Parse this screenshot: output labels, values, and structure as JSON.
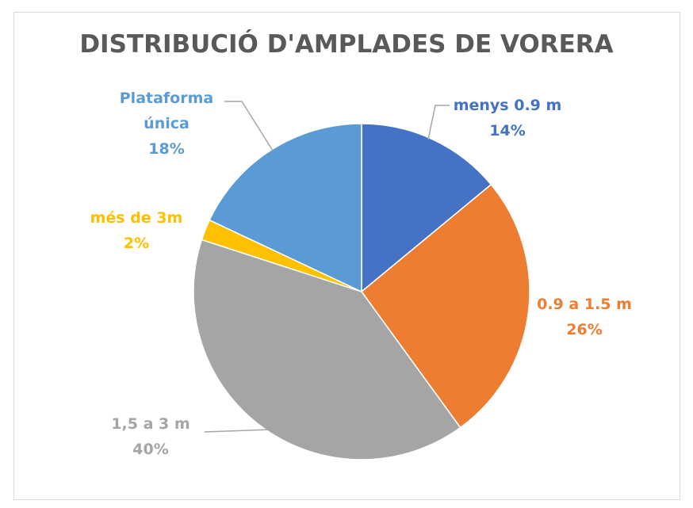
{
  "chart_data": {
    "type": "pie",
    "title": "DISTRIBUCIÓ D'AMPLADES DE VORERA",
    "categories": [
      "menys 0.9 m",
      "0.9 a 1.5 m",
      "1,5 a 3 m",
      "més de 3m",
      "Plataforma única"
    ],
    "values": [
      14,
      26,
      40,
      2,
      18
    ],
    "value_labels": [
      "14%",
      "26%",
      "40%",
      "2%",
      "18%"
    ],
    "colors": [
      "#4472c4",
      "#ed7d31",
      "#a5a5a5",
      "#ffc000",
      "#5b9bd5"
    ]
  }
}
